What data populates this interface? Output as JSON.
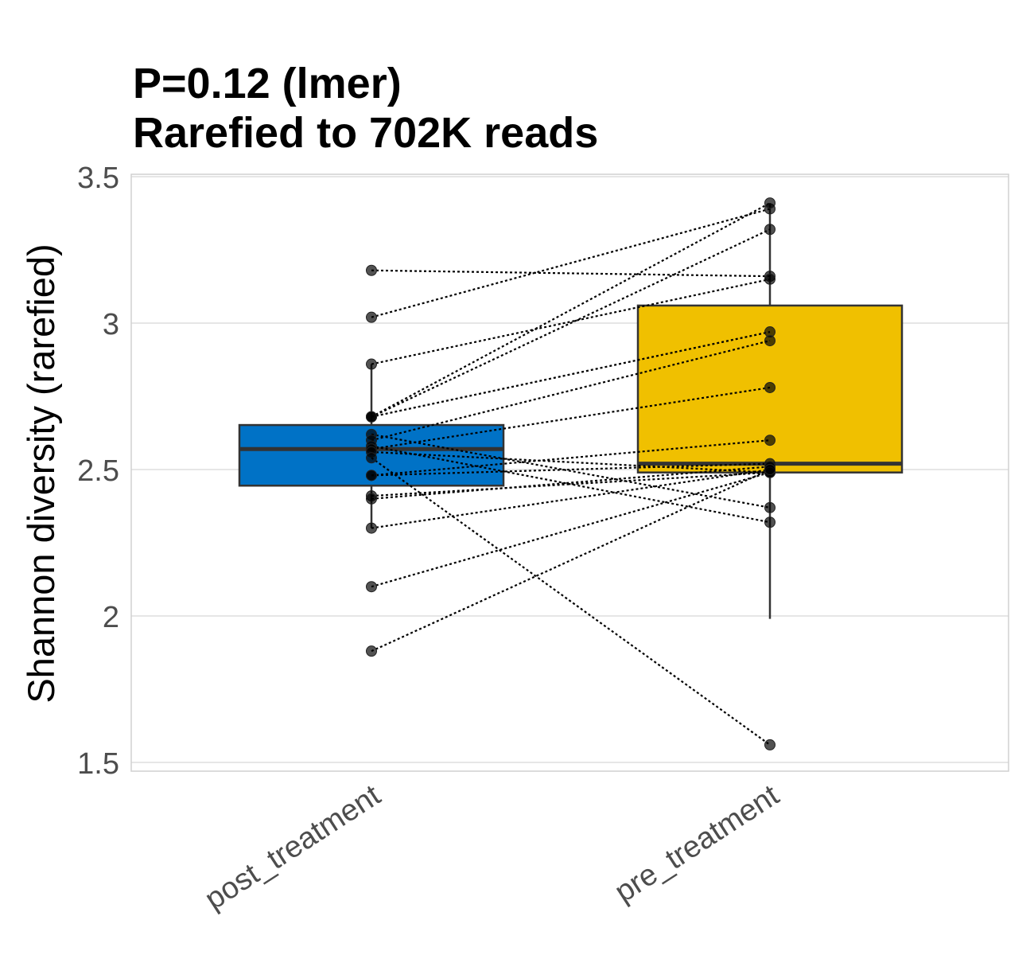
{
  "chart_data": {
    "type": "box",
    "title": "P=0.12 (lmer)",
    "subtitle": "Rarefied to 702K reads",
    "xlabel": "",
    "ylabel": "Shannon diversity (rarefied)",
    "ylim": [
      1.47,
      3.5
    ],
    "yticks": [
      1.5,
      2,
      2.5,
      3,
      3.5
    ],
    "ytick_labels": [
      "1.5",
      "2",
      "2.5",
      "3",
      "3.5"
    ],
    "grid": true,
    "legend": "none",
    "categories": [
      "post_treatment",
      "pre_treatment"
    ],
    "boxes": [
      {
        "category": "post_treatment",
        "color": "#0072C6",
        "lower_whisker": 2.3,
        "q1": 2.445,
        "median": 2.57,
        "q3": 2.652,
        "upper_whisker": 2.86
      },
      {
        "category": "pre_treatment",
        "color": "#F0C000",
        "lower_whisker": 1.99,
        "q1": 2.49,
        "median": 2.52,
        "q3": 3.06,
        "upper_whisker": 3.41
      }
    ],
    "pairs": [
      [
        3.18,
        3.16
      ],
      [
        3.02,
        3.39
      ],
      [
        2.86,
        3.15
      ],
      [
        2.68,
        3.41
      ],
      [
        2.68,
        3.32
      ],
      [
        2.68,
        2.97
      ],
      [
        2.62,
        2.37
      ],
      [
        2.6,
        2.94
      ],
      [
        2.58,
        2.32
      ],
      [
        2.57,
        2.78
      ],
      [
        2.56,
        2.49
      ],
      [
        2.54,
        1.56
      ],
      [
        2.48,
        2.52
      ],
      [
        2.48,
        2.6
      ],
      [
        2.41,
        2.49
      ],
      [
        2.4,
        2.51
      ],
      [
        2.3,
        2.5
      ],
      [
        2.1,
        2.49
      ],
      [
        1.88,
        2.5
      ]
    ]
  }
}
